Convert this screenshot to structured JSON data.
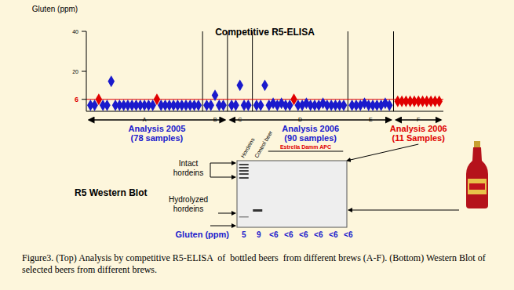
{
  "chart_data": {
    "type": "scatter",
    "title": "Competitive R5-ELISA",
    "y_label": "Gluten (ppm)",
    "x": [
      1,
      2,
      3,
      4,
      5,
      6,
      7,
      8,
      9,
      10,
      11,
      12,
      13,
      14,
      15,
      16,
      17,
      18,
      19,
      20,
      21,
      22,
      23,
      24,
      25,
      26,
      27,
      29,
      30,
      31,
      32,
      33,
      35,
      36,
      37,
      38,
      39,
      41,
      42,
      43,
      44,
      45,
      46,
      47,
      48,
      49,
      50,
      51,
      52,
      53,
      54,
      55,
      56,
      57,
      58,
      59,
      60,
      61,
      62,
      64,
      65,
      66,
      67,
      68,
      69,
      70,
      71,
      72,
      73,
      75,
      76,
      77,
      78,
      79,
      80,
      81,
      82,
      83,
      84,
      85
    ],
    "values": [
      3,
      3,
      6,
      3,
      3,
      15,
      3,
      3,
      3,
      3,
      3,
      3,
      3,
      3,
      3,
      3,
      6,
      3,
      3,
      3,
      3,
      3,
      3,
      3,
      3,
      3,
      3,
      3,
      3,
      8,
      3,
      3,
      3,
      3,
      13,
      3,
      3,
      3,
      3,
      13,
      3,
      4,
      3,
      4,
      3,
      3,
      6,
      3,
      3,
      4,
      3,
      3,
      3,
      4,
      3,
      3,
      3,
      3,
      3,
      3,
      3,
      3,
      4,
      3,
      3,
      3,
      3,
      4,
      3,
      5,
      5,
      5,
      5,
      5,
      5,
      5,
      5,
      5,
      5,
      5
    ],
    "colors": [
      "#1a1acc",
      "#1a1acc",
      "#e00000",
      "#1a1acc",
      "#1a1acc",
      "#1a1acc",
      "#1a1acc",
      "#1a1acc",
      "#1a1acc",
      "#1a1acc",
      "#1a1acc",
      "#1a1acc",
      "#1a1acc",
      "#1a1acc",
      "#1a1acc",
      "#1a1acc",
      "#e00000",
      "#1a1acc",
      "#1a1acc",
      "#1a1acc",
      "#1a1acc",
      "#1a1acc",
      "#1a1acc",
      "#1a1acc",
      "#1a1acc",
      "#1a1acc",
      "#1a1acc",
      "#1a1acc",
      "#1a1acc",
      "#1a1acc",
      "#1a1acc",
      "#1a1acc",
      "#1a1acc",
      "#1a1acc",
      "#1a1acc",
      "#1a1acc",
      "#1a1acc",
      "#1a1acc",
      "#1a1acc",
      "#1a1acc",
      "#1a1acc",
      "#1a1acc",
      "#1a1acc",
      "#1a1acc",
      "#1a1acc",
      "#1a1acc",
      "#e00000",
      "#1a1acc",
      "#1a1acc",
      "#1a1acc",
      "#1a1acc",
      "#1a1acc",
      "#1a1acc",
      "#1a1acc",
      "#1a1acc",
      "#1a1acc",
      "#1a1acc",
      "#1a1acc",
      "#1a1acc",
      "#1a1acc",
      "#1a1acc",
      "#1a1acc",
      "#1a1acc",
      "#1a1acc",
      "#1a1acc",
      "#1a1acc",
      "#1a1acc",
      "#1a1acc",
      "#1a1acc",
      "#e00000",
      "#e00000",
      "#e00000",
      "#e00000",
      "#e00000",
      "#e00000",
      "#e00000",
      "#e00000",
      "#e00000",
      "#e00000",
      "#e00000"
    ],
    "marker": "diamond",
    "xlim": [
      0,
      86
    ],
    "xticks": [
      {
        "value": 14,
        "label": "A"
      },
      {
        "value": 31,
        "label": "B"
      },
      {
        "value": 37,
        "label": "C"
      },
      {
        "value": 51.5,
        "label": "D"
      },
      {
        "value": 68.5,
        "label": "E"
      },
      {
        "value": 80,
        "label": "F"
      }
    ],
    "dividers": [
      28,
      34,
      40,
      63,
      74
    ],
    "ylim": [
      0,
      40
    ],
    "yticks": [
      6,
      20,
      40
    ],
    "threshold": {
      "value": 6,
      "color": "#e00000"
    }
  },
  "analyses": [
    {
      "title": "Analysis 2005",
      "subtitle": "(78 samples)",
      "color": "#1a1acc"
    },
    {
      "title": "Analysis 2006",
      "subtitle": "(90 samples)",
      "color": "#1a1acc"
    },
    {
      "title": "Analysis 2006",
      "subtitle": "(11 Samples)",
      "color": "#e00000"
    }
  ],
  "western_blot": {
    "title": "R5 Western Blot",
    "lanes": [
      "Hordeins",
      "Control beer"
    ],
    "group": "Estrella Damm APC",
    "bands": [
      "Intact hordeins",
      "Hydrolyzed hordeins"
    ],
    "gluten_label": "Gluten (ppm)",
    "gluten": [
      "5",
      "9",
      "<6",
      "<6",
      "<6",
      "<6",
      "<6",
      "<6"
    ]
  },
  "caption": "Figure3. (Top) Analysis by competitive R5-ELISA  of  bottled beers  from different brews (A-F). (Bottom) Western Blot of selected beers from different brews."
}
